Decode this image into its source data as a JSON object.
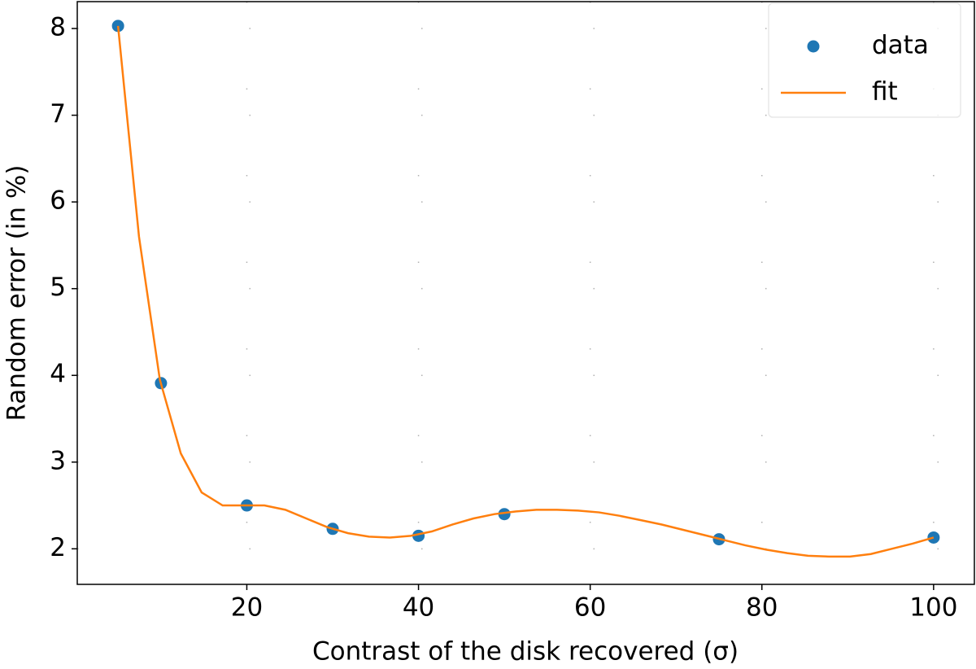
{
  "chart_data": {
    "type": "scatter",
    "x_label": "Contrast of the disk recovered (σ)",
    "y_label": "Random error (in %)",
    "xlim": [
      0.25,
      104.75
    ],
    "ylim": [
      1.59,
      8.31
    ],
    "xticks": [
      20,
      40,
      60,
      80,
      100
    ],
    "yticks": [
      2,
      3,
      4,
      5,
      6,
      7,
      8
    ],
    "grid": true,
    "legend": "upper right",
    "series": [
      {
        "name": "data",
        "type": "scatter",
        "color": "#1f77b4",
        "x": [
          5,
          10,
          20,
          30,
          40,
          50,
          75,
          100
        ],
        "values": [
          8.03,
          3.91,
          2.5,
          2.23,
          2.15,
          2.4,
          2.11,
          2.13
        ]
      },
      {
        "name": "fit",
        "type": "line",
        "color": "#ff7f0e",
        "x": [
          5,
          7.44,
          9.87,
          12.31,
          14.74,
          17.18,
          19.62,
          22.05,
          24.49,
          26.92,
          29.36,
          31.79,
          34.23,
          36.67,
          39.1,
          41.54,
          43.97,
          46.41,
          48.85,
          51.28,
          53.72,
          56.15,
          58.59,
          61.03,
          63.46,
          65.9,
          68.33,
          70.77,
          73.21,
          75.64,
          78.08,
          80.51,
          82.95,
          85.38,
          87.82,
          90.26,
          92.69,
          95.13,
          97.56,
          100
        ],
        "values": [
          8.03,
          5.6,
          3.95,
          3.1,
          2.65,
          2.5,
          2.5,
          2.5,
          2.45,
          2.35,
          2.25,
          2.18,
          2.14,
          2.13,
          2.15,
          2.2,
          2.28,
          2.35,
          2.4,
          2.43,
          2.45,
          2.45,
          2.44,
          2.42,
          2.38,
          2.33,
          2.28,
          2.22,
          2.16,
          2.1,
          2.04,
          1.99,
          1.95,
          1.92,
          1.91,
          1.91,
          1.94,
          2.0,
          2.06,
          2.13
        ]
      }
    ]
  }
}
